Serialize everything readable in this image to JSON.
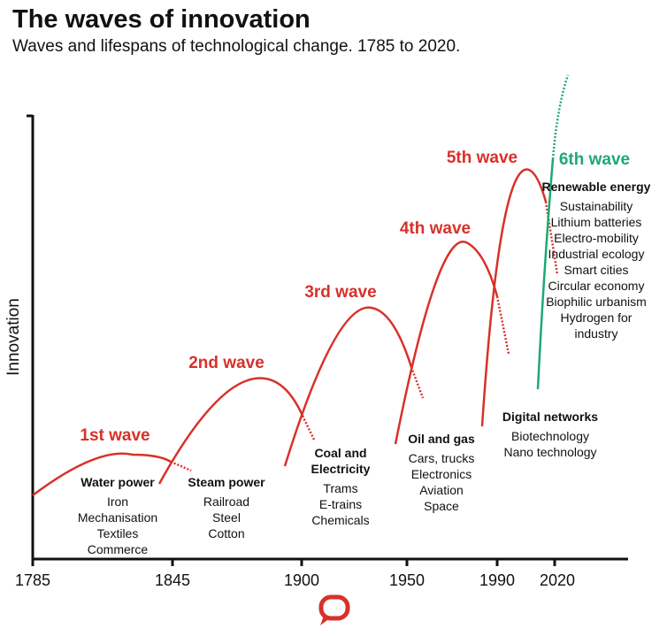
{
  "title": "The waves of innovation",
  "subtitle": "Waves and lifespans of technological change. 1785 to 2020.",
  "y_axis_label": "Innovation",
  "x_ticks": [
    "1785",
    "1845",
    "1900",
    "1950",
    "1990",
    "2020"
  ],
  "colors": {
    "wave": "#d8312a",
    "sixth_wave": "#1fa874",
    "logo": "#d8312a"
  },
  "logo": "speech-bubble logo",
  "waves": [
    {
      "label": "1st wave",
      "heading": "Water power",
      "items": "Iron\nMechanisation\nTextiles\nCommerce"
    },
    {
      "label": "2nd wave",
      "heading": "Steam power",
      "items": "Railroad\nSteel\nCotton"
    },
    {
      "label": "3rd wave",
      "heading": "Coal and\nElectricity",
      "items": "Trams\nE-trains\nChemicals"
    },
    {
      "label": "4th wave",
      "heading": "Oil and gas",
      "items": "Cars, trucks\nElectronics\nAviation\nSpace"
    },
    {
      "label": "5th wave",
      "heading": "Digital networks",
      "items": "Biotechnology\nNano technology"
    },
    {
      "label": "6th wave",
      "heading": "Renewable energy",
      "items": "Sustainability\nLithium batteries\nElectro-mobility\nIndustrial ecology\nSmart cities\nCircular economy\nBiophilic urbanism\nHydrogen for\nindustry"
    }
  ]
}
